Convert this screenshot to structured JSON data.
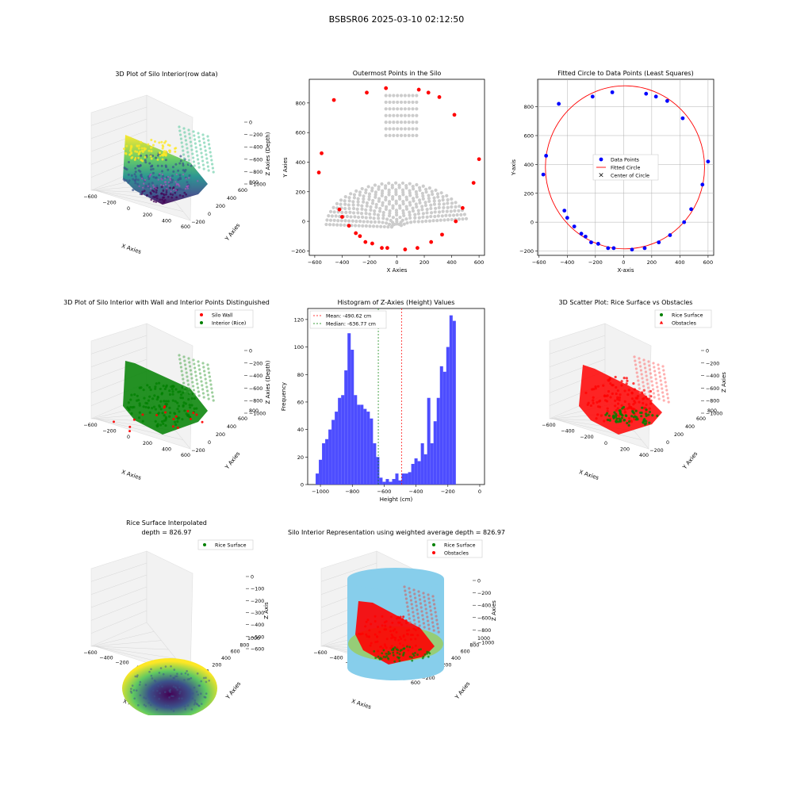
{
  "figure": {
    "suptitle": "BSBSR06 2025-03-10 02:12:50"
  },
  "colors": {
    "gray": "#cccccc",
    "red": "#ff0000",
    "blue": "#0000ff",
    "green": "#008000",
    "hist": "#4d4dff",
    "cyl": "#87ceeb"
  },
  "chart_data": [
    {
      "id": "p1",
      "type": "scatter3d",
      "title": "3D Plot of Silo Interior(row data)",
      "xlabel": "X Axies",
      "ylabel": "Y Axies",
      "zlabel": "Z Axies (Depth)",
      "xticks": [
        "−600",
        "−200",
        "0",
        "200",
        "400",
        "600"
      ],
      "yticks": [
        "−200",
        "0",
        "200",
        "400",
        "600",
        "800"
      ],
      "zticks": [
        "0",
        "−200",
        "−400",
        "−600",
        "−800",
        "−1000"
      ],
      "colormap": "viridis"
    },
    {
      "id": "p2",
      "type": "scatter",
      "title": "Outermost Points in the Silo",
      "xlabel": "X Axies",
      "ylabel": "Y Axies",
      "xticks": [
        -600,
        -400,
        -200,
        0,
        200,
        400,
        600
      ],
      "yticks": [
        -200,
        0,
        200,
        400,
        600,
        800
      ],
      "xlim": [
        -640,
        640
      ],
      "ylim": [
        -230,
        960
      ],
      "series": [
        {
          "role": "interior",
          "color": "#cccccc"
        },
        {
          "role": "outermost",
          "color": "#ff0000",
          "points": [
            [
              -570,
              330
            ],
            [
              -550,
              460
            ],
            [
              -460,
              820
            ],
            [
              -420,
              80
            ],
            [
              -400,
              30
            ],
            [
              -350,
              -30
            ],
            [
              -300,
              -80
            ],
            [
              -270,
              -100
            ],
            [
              -230,
              -140
            ],
            [
              -220,
              870
            ],
            [
              -180,
              -150
            ],
            [
              -110,
              -180
            ],
            [
              -80,
              900
            ],
            [
              -70,
              -180
            ],
            [
              60,
              -190
            ],
            [
              150,
              -180
            ],
            [
              160,
              890
            ],
            [
              230,
              870
            ],
            [
              250,
              -140
            ],
            [
              310,
              840
            ],
            [
              330,
              -90
            ],
            [
              420,
              720
            ],
            [
              430,
              0
            ],
            [
              480,
              90
            ],
            [
              560,
              260
            ],
            [
              600,
              420
            ]
          ]
        }
      ]
    },
    {
      "id": "p3",
      "type": "scatter",
      "title": "Fitted Circle to Data Points (Least Squares)",
      "xlabel": "X-axis",
      "ylabel": "Y-axis",
      "xticks": [
        -600,
        -400,
        -200,
        0,
        200,
        400,
        600
      ],
      "yticks": [
        -200,
        0,
        200,
        400,
        600,
        800
      ],
      "xlim": [
        -610,
        640
      ],
      "ylim": [
        -230,
        990
      ],
      "legend": [
        "Data Points",
        "Fitted Circle",
        "Center of Circle"
      ],
      "circle": {
        "cx": 10,
        "cy": 380,
        "r": 565
      },
      "points": [
        [
          -570,
          330
        ],
        [
          -550,
          460
        ],
        [
          -460,
          820
        ],
        [
          -420,
          80
        ],
        [
          -400,
          30
        ],
        [
          -350,
          -30
        ],
        [
          -300,
          -80
        ],
        [
          -270,
          -100
        ],
        [
          -230,
          -140
        ],
        [
          -220,
          870
        ],
        [
          -180,
          -150
        ],
        [
          -110,
          -180
        ],
        [
          -80,
          900
        ],
        [
          -70,
          -180
        ],
        [
          60,
          -190
        ],
        [
          150,
          -180
        ],
        [
          160,
          890
        ],
        [
          230,
          870
        ],
        [
          250,
          -140
        ],
        [
          310,
          840
        ],
        [
          330,
          -90
        ],
        [
          420,
          720
        ],
        [
          430,
          0
        ],
        [
          480,
          90
        ],
        [
          560,
          260
        ],
        [
          600,
          420
        ]
      ]
    },
    {
      "id": "p4",
      "type": "scatter3d",
      "title": "3D Plot of Silo Interior with Wall and Interior Points Distinguished",
      "xlabel": "X Axies",
      "ylabel": "Y Axies",
      "zlabel": "Z Axies (Depth)",
      "xticks": [
        "−600",
        "−200",
        "0",
        "200",
        "400",
        "600"
      ],
      "yticks": [
        "−200",
        "0",
        "200",
        "400",
        "600",
        "800"
      ],
      "zticks": [
        "0",
        "−200",
        "−400",
        "−600",
        "−800",
        "−1000"
      ],
      "legend": [
        "Silo Wall",
        "Interior (Rice)"
      ]
    },
    {
      "id": "p5",
      "type": "bar",
      "title": "Histogram of Z-Axies (Height) Values",
      "xlabel": "Height (cm)",
      "ylabel": "Frequency",
      "xticks": [
        -1000,
        -800,
        -600,
        -400,
        -200,
        0
      ],
      "yticks": [
        0,
        20,
        40,
        60,
        80,
        100,
        120
      ],
      "xlim": [
        -1080,
        30
      ],
      "ylim": [
        0,
        128
      ],
      "bin_start": -1030,
      "bin_width": 20,
      "values": [
        8,
        18,
        30,
        33,
        40,
        47,
        53,
        63,
        65,
        83,
        110,
        98,
        65,
        58,
        58,
        55,
        53,
        48,
        30,
        20,
        5,
        2,
        4,
        2,
        4,
        8,
        3,
        8,
        8,
        9,
        15,
        19,
        17,
        30,
        22,
        63,
        30,
        46,
        63,
        86,
        82,
        100,
        123,
        119
      ],
      "lines": [
        {
          "label": "Mean: -490.62 cm",
          "value": -490.62,
          "color": "#ff0000"
        },
        {
          "label": "Median: -636.77 cm",
          "value": -636.77,
          "color": "#008000"
        }
      ]
    },
    {
      "id": "p6",
      "type": "scatter3d",
      "title": "3D Scatter Plot: Rice Surface vs Obstacles",
      "xlabel": "X Axies",
      "ylabel": "Y Axies",
      "zlabel": "Z Axies",
      "xticks": [
        "−600",
        "−400",
        "−200",
        "0",
        "200",
        "400"
      ],
      "yticks": [
        "−200",
        "0",
        "200",
        "400",
        "600",
        "800"
      ],
      "zticks": [
        "0",
        "−200",
        "−400",
        "−600",
        "−800",
        "−1000"
      ],
      "legend": [
        "Rice Surface",
        "Obstacles"
      ]
    },
    {
      "id": "p7",
      "type": "surface3d",
      "title": "Rice Surface Interpolated",
      "subtitle": "depth = 826.97",
      "xlabel": "X Axies",
      "ylabel": "Y Axies",
      "zlabel": "Z Axis",
      "xticks": [
        "−600",
        "−400",
        "−200",
        "0",
        "200",
        "400",
        "600"
      ],
      "yticks": [
        "−200",
        "0",
        "200",
        "400",
        "600",
        "800",
        "1000"
      ],
      "zticks": [
        "0",
        "−100",
        "−200",
        "−300",
        "−400",
        "−500",
        "−600"
      ],
      "legend": [
        "Rice Surface"
      ]
    },
    {
      "id": "p8",
      "type": "scatter3d",
      "title": "Silo Interior Representation using weighted average depth = 826.97",
      "xlabel": "X Axies",
      "ylabel": "Y Axies",
      "zlabel": "Z Axies",
      "xticks": [
        "−600",
        "−400",
        "−200",
        "0",
        "200",
        "400",
        "600"
      ],
      "yticks": [
        "−200",
        "0",
        "200",
        "400",
        "600",
        "800",
        "1000"
      ],
      "zticks": [
        "0",
        "−200",
        "−400",
        "−600",
        "−800",
        "−1000"
      ],
      "legend": [
        "Rice Surface",
        "Obstacles"
      ]
    }
  ]
}
